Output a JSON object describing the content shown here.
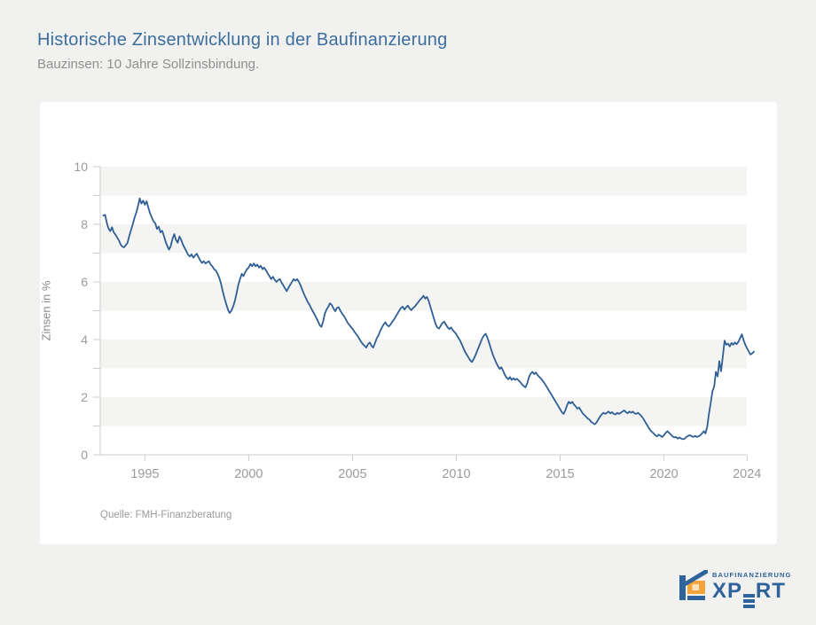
{
  "page": {
    "background": "#f1f1ef",
    "card_background": "#ffffff"
  },
  "header": {
    "title": "Historische Zinsentwicklung in der Baufinanzierung",
    "subtitle": "Bauzinsen: 10 Jahre Sollzinsbindung.",
    "title_color": "#3d6e9e"
  },
  "chart_data": {
    "type": "line",
    "title": "Historische Zinsentwicklung in der Baufinanzierung",
    "subtitle": "Bauzinsen: 10 Jahre Sollzinsbindung.",
    "xlabel": "",
    "ylabel": "Zinsen in %",
    "ylim": [
      0,
      10
    ],
    "y_tick_step": 1,
    "y_label_step": 2,
    "x_tick_years": [
      1995,
      2000,
      2005,
      2010,
      2015,
      2020,
      2024
    ],
    "x_domain": [
      1992.85,
      2024.45
    ],
    "grid_bands": [
      [
        1,
        2
      ],
      [
        3,
        4
      ],
      [
        5,
        6
      ],
      [
        7,
        8
      ],
      [
        9,
        10
      ]
    ],
    "legend": "none",
    "source": "Quelle: FMH-Finanzberatung",
    "colors": {
      "line": "#2f5f94",
      "band": "#f4f4f2",
      "axis": "#cccccc",
      "tick_label": "#9b9b9b"
    },
    "series": [
      {
        "name": "Bauzinsen 10 Jahre Sollzinsbindung (%)",
        "start_year": 1993,
        "interval_months": 1,
        "values": [
          8.3,
          8.33,
          8.05,
          7.85,
          7.76,
          7.9,
          7.72,
          7.64,
          7.54,
          7.44,
          7.3,
          7.22,
          7.2,
          7.28,
          7.36,
          7.6,
          7.8,
          8.0,
          8.22,
          8.4,
          8.62,
          8.9,
          8.72,
          8.82,
          8.68,
          8.8,
          8.58,
          8.38,
          8.24,
          8.1,
          8.04,
          7.84,
          7.92,
          7.72,
          7.78,
          7.6,
          7.4,
          7.24,
          7.12,
          7.26,
          7.5,
          7.66,
          7.46,
          7.36,
          7.58,
          7.46,
          7.3,
          7.18,
          7.06,
          6.94,
          6.88,
          6.96,
          6.84,
          6.92,
          6.98,
          6.86,
          6.74,
          6.66,
          6.72,
          6.64,
          6.68,
          6.72,
          6.6,
          6.54,
          6.44,
          6.4,
          6.28,
          6.14,
          5.94,
          5.68,
          5.44,
          5.24,
          5.04,
          4.92,
          5.0,
          5.14,
          5.34,
          5.6,
          5.9,
          6.1,
          6.28,
          6.2,
          6.34,
          6.44,
          6.5,
          6.62,
          6.54,
          6.64,
          6.54,
          6.6,
          6.5,
          6.56,
          6.44,
          6.5,
          6.4,
          6.3,
          6.2,
          6.1,
          6.18,
          6.08,
          6.0,
          6.06,
          6.1,
          5.98,
          5.88,
          5.78,
          5.68,
          5.8,
          5.9,
          6.0,
          6.1,
          6.04,
          6.1,
          6.0,
          5.88,
          5.72,
          5.58,
          5.44,
          5.32,
          5.22,
          5.1,
          4.98,
          4.88,
          4.76,
          4.64,
          4.5,
          4.44,
          4.62,
          4.9,
          5.04,
          5.14,
          5.26,
          5.2,
          5.08,
          4.98,
          5.1,
          5.12,
          5.0,
          4.9,
          4.82,
          4.72,
          4.6,
          4.52,
          4.44,
          4.38,
          4.28,
          4.2,
          4.12,
          4.02,
          3.92,
          3.84,
          3.78,
          3.72,
          3.84,
          3.9,
          3.78,
          3.72,
          3.88,
          4.04,
          4.14,
          4.3,
          4.42,
          4.52,
          4.6,
          4.5,
          4.46,
          4.52,
          4.62,
          4.7,
          4.8,
          4.9,
          5.0,
          5.1,
          5.14,
          5.04,
          5.12,
          5.18,
          5.08,
          5.02,
          5.1,
          5.14,
          5.22,
          5.3,
          5.38,
          5.44,
          5.52,
          5.42,
          5.48,
          5.34,
          5.14,
          4.94,
          4.74,
          4.54,
          4.42,
          4.38,
          4.48,
          4.58,
          4.62,
          4.52,
          4.42,
          4.36,
          4.42,
          4.32,
          4.26,
          4.18,
          4.08,
          3.98,
          3.86,
          3.72,
          3.58,
          3.48,
          3.38,
          3.28,
          3.22,
          3.32,
          3.44,
          3.6,
          3.74,
          3.9,
          4.04,
          4.14,
          4.2,
          4.06,
          3.88,
          3.68,
          3.5,
          3.34,
          3.2,
          3.08,
          2.98,
          3.04,
          2.92,
          2.78,
          2.68,
          2.62,
          2.7,
          2.6,
          2.66,
          2.6,
          2.64,
          2.58,
          2.52,
          2.44,
          2.38,
          2.34,
          2.48,
          2.7,
          2.82,
          2.88,
          2.8,
          2.86,
          2.76,
          2.7,
          2.64,
          2.56,
          2.48,
          2.38,
          2.28,
          2.18,
          2.08,
          1.98,
          1.88,
          1.78,
          1.68,
          1.58,
          1.48,
          1.42,
          1.54,
          1.72,
          1.84,
          1.78,
          1.84,
          1.74,
          1.68,
          1.6,
          1.64,
          1.54,
          1.44,
          1.38,
          1.32,
          1.26,
          1.22,
          1.14,
          1.1,
          1.06,
          1.12,
          1.22,
          1.32,
          1.4,
          1.46,
          1.42,
          1.46,
          1.5,
          1.44,
          1.48,
          1.42,
          1.4,
          1.46,
          1.42,
          1.46,
          1.5,
          1.54,
          1.48,
          1.44,
          1.5,
          1.46,
          1.5,
          1.44,
          1.42,
          1.46,
          1.4,
          1.34,
          1.26,
          1.16,
          1.06,
          0.96,
          0.86,
          0.8,
          0.74,
          0.68,
          0.64,
          0.7,
          0.66,
          0.62,
          0.68,
          0.76,
          0.82,
          0.76,
          0.7,
          0.64,
          0.6,
          0.62,
          0.56,
          0.6,
          0.56,
          0.54,
          0.56,
          0.62,
          0.66,
          0.68,
          0.64,
          0.62,
          0.66,
          0.62,
          0.64,
          0.68,
          0.74,
          0.82,
          0.74,
          0.98,
          1.42,
          1.8,
          2.2,
          2.36,
          2.88,
          2.72,
          3.25,
          2.9,
          3.4,
          3.96,
          3.82,
          3.86,
          3.76,
          3.88,
          3.82,
          3.9,
          3.84,
          3.92,
          4.05,
          4.18,
          3.98,
          3.82,
          3.7,
          3.58,
          3.48,
          3.52,
          3.58
        ]
      }
    ]
  },
  "logo": {
    "brand_top": "BAUFINANZIERUNG",
    "brand_main": "XPERT",
    "blue": "#2e639c",
    "orange": "#f3a33a",
    "orange_light": "#fbe3bd"
  }
}
